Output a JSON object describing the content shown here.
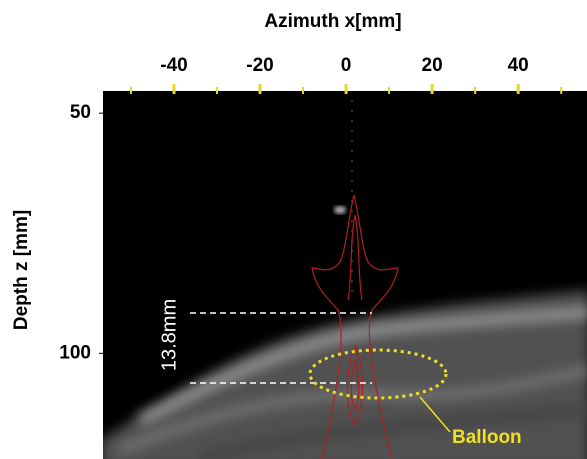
{
  "chart_data": {
    "type": "image",
    "x_label": "Azimuth x[mm]",
    "y_label": "Depth z [mm]",
    "xlim": [
      -56.5,
      56
    ],
    "xticks": [
      -40,
      -20,
      0,
      20,
      40
    ],
    "xminorticks": [
      -50,
      -30,
      -10,
      10,
      30,
      50
    ],
    "ylim": [
      45.6,
      122
    ],
    "yticks": [
      50,
      100
    ],
    "annotations": [
      "13.8mm",
      "Balloon"
    ]
  }
}
